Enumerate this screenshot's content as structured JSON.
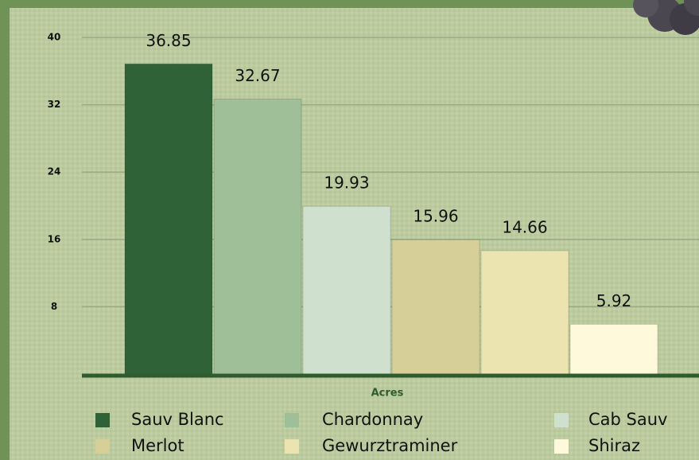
{
  "chart_data": {
    "type": "bar",
    "xlabel": "Acres",
    "categories": [
      "Sauv Blanc",
      "Chardonnay",
      "Cab Sauv",
      "Merlot",
      "Gewurztraminer",
      "Shiraz"
    ],
    "values": [
      36.85,
      32.67,
      19.93,
      15.96,
      14.66,
      5.92
    ],
    "colors": [
      "#2f6236",
      "#9ebf98",
      "#cfe0cf",
      "#d6cf98",
      "#ebe4b0",
      "#fdf9da"
    ],
    "ylim": [
      0,
      40
    ],
    "yticks": [
      8,
      16,
      24,
      32,
      40
    ],
    "grid": true
  }
}
